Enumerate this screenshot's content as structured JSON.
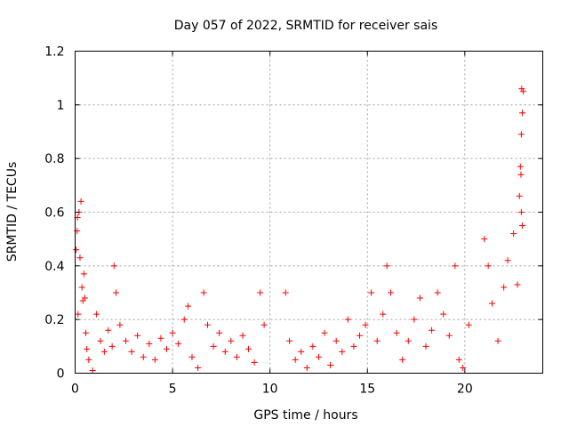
{
  "chart_data": {
    "type": "scatter",
    "title": "Day 057 of 2022, SRMTID for receiver sais",
    "xlabel": "GPS time / hours",
    "ylabel": "SRMTID / TECUs",
    "xlim": [
      0,
      24
    ],
    "ylim": [
      0,
      1.2
    ],
    "x_ticks": [
      0,
      5,
      10,
      15,
      20
    ],
    "y_ticks": [
      0,
      0.2,
      0.4,
      0.6,
      0.8,
      1,
      1.2
    ],
    "x_tick_labels": [
      "0",
      "5",
      "10",
      "15",
      "20"
    ],
    "y_tick_labels": [
      "0",
      "0.2",
      "0.4",
      "0.6",
      "0.8",
      "1",
      "1.2"
    ],
    "grid": true,
    "marker": "plus",
    "color": "#ff0000",
    "series": [
      {
        "name": "SRMTID",
        "points": [
          [
            0.05,
            0.46
          ],
          [
            0.1,
            0.53
          ],
          [
            0.12,
            0.58
          ],
          [
            0.15,
            0.22
          ],
          [
            0.2,
            0.6
          ],
          [
            0.25,
            0.43
          ],
          [
            0.3,
            0.64
          ],
          [
            0.35,
            0.32
          ],
          [
            0.4,
            0.27
          ],
          [
            0.45,
            0.37
          ],
          [
            0.5,
            0.28
          ],
          [
            0.55,
            0.15
          ],
          [
            0.6,
            0.09
          ],
          [
            0.7,
            0.05
          ],
          [
            0.9,
            0.01
          ],
          [
            1.1,
            0.22
          ],
          [
            1.3,
            0.12
          ],
          [
            1.5,
            0.08
          ],
          [
            1.7,
            0.16
          ],
          [
            1.9,
            0.1
          ],
          [
            2.0,
            0.4
          ],
          [
            2.1,
            0.3
          ],
          [
            2.3,
            0.18
          ],
          [
            2.6,
            0.12
          ],
          [
            2.9,
            0.08
          ],
          [
            3.2,
            0.14
          ],
          [
            3.5,
            0.06
          ],
          [
            3.8,
            0.11
          ],
          [
            4.1,
            0.05
          ],
          [
            4.4,
            0.13
          ],
          [
            4.7,
            0.09
          ],
          [
            5.0,
            0.15
          ],
          [
            5.3,
            0.11
          ],
          [
            5.6,
            0.2
          ],
          [
            5.8,
            0.25
          ],
          [
            6.0,
            0.06
          ],
          [
            6.3,
            0.02
          ],
          [
            6.6,
            0.3
          ],
          [
            6.8,
            0.18
          ],
          [
            7.1,
            0.1
          ],
          [
            7.4,
            0.15
          ],
          [
            7.7,
            0.08
          ],
          [
            8.0,
            0.12
          ],
          [
            8.3,
            0.06
          ],
          [
            8.6,
            0.14
          ],
          [
            8.9,
            0.09
          ],
          [
            9.2,
            0.04
          ],
          [
            9.5,
            0.3
          ],
          [
            9.7,
            0.18
          ],
          [
            10.8,
            0.3
          ],
          [
            11.0,
            0.12
          ],
          [
            11.3,
            0.05
          ],
          [
            11.6,
            0.08
          ],
          [
            11.9,
            0.02
          ],
          [
            12.2,
            0.1
          ],
          [
            12.5,
            0.06
          ],
          [
            12.8,
            0.15
          ],
          [
            13.1,
            0.03
          ],
          [
            13.4,
            0.12
          ],
          [
            13.7,
            0.08
          ],
          [
            14.0,
            0.2
          ],
          [
            14.3,
            0.1
          ],
          [
            14.6,
            0.14
          ],
          [
            14.9,
            0.18
          ],
          [
            15.2,
            0.3
          ],
          [
            15.5,
            0.12
          ],
          [
            15.8,
            0.22
          ],
          [
            16.0,
            0.4
          ],
          [
            16.2,
            0.3
          ],
          [
            16.5,
            0.15
          ],
          [
            16.8,
            0.05
          ],
          [
            17.1,
            0.12
          ],
          [
            17.4,
            0.2
          ],
          [
            17.7,
            0.28
          ],
          [
            18.0,
            0.1
          ],
          [
            18.3,
            0.16
          ],
          [
            18.6,
            0.3
          ],
          [
            18.9,
            0.22
          ],
          [
            19.2,
            0.14
          ],
          [
            19.5,
            0.4
          ],
          [
            19.7,
            0.05
          ],
          [
            19.9,
            0.02
          ],
          [
            20.2,
            0.18
          ],
          [
            21.0,
            0.5
          ],
          [
            21.2,
            0.4
          ],
          [
            21.4,
            0.26
          ],
          [
            21.7,
            0.12
          ],
          [
            22.0,
            0.32
          ],
          [
            22.2,
            0.42
          ],
          [
            22.5,
            0.52
          ],
          [
            22.7,
            0.33
          ],
          [
            22.8,
            0.66
          ],
          [
            22.85,
            0.77
          ],
          [
            22.9,
            0.89
          ],
          [
            22.95,
            0.97
          ],
          [
            23.0,
            1.05
          ],
          [
            22.92,
            1.06
          ],
          [
            22.88,
            0.74
          ],
          [
            22.9,
            0.6
          ],
          [
            22.95,
            0.55
          ]
        ]
      }
    ]
  }
}
